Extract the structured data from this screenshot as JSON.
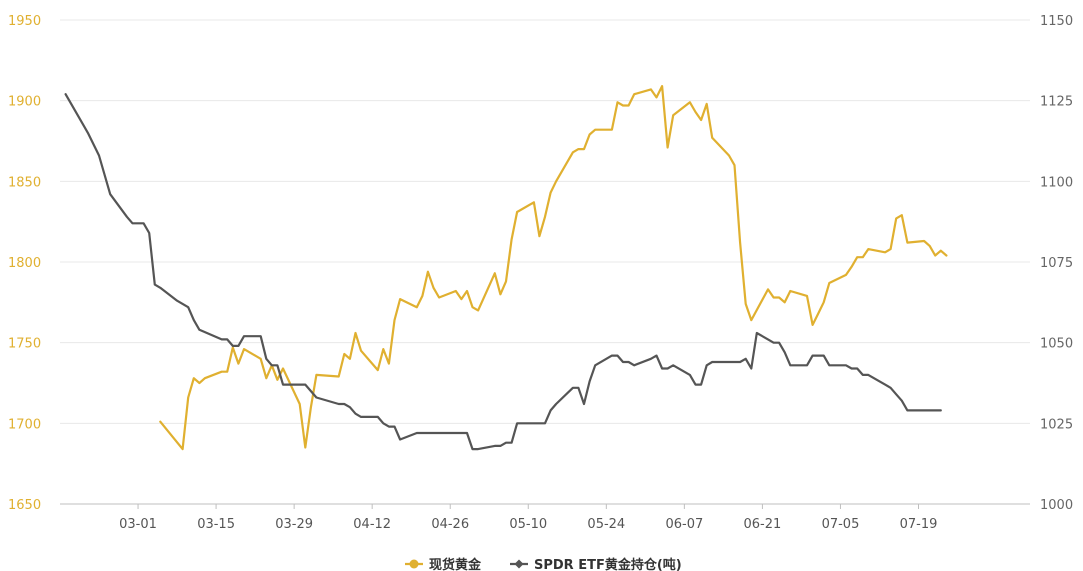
{
  "chart_data": {
    "type": "line",
    "title": "",
    "xlabel": "",
    "ylabel": "",
    "x_ticks": [
      "03-01",
      "03-15",
      "03-29",
      "04-12",
      "04-26",
      "05-10",
      "05-24",
      "06-07",
      "06-21",
      "07-05",
      "07-19"
    ],
    "y_left": {
      "ticks": [
        1650,
        1700,
        1750,
        1800,
        1850,
        1900,
        1950
      ],
      "range": [
        1650,
        1950
      ]
    },
    "y_right": {
      "ticks": [
        1000,
        1025,
        1050,
        1075,
        1100,
        1125,
        1150
      ],
      "range": [
        1000,
        1150
      ]
    },
    "x_range_days": [
      -14,
      160
    ],
    "grid": "horizontal",
    "legend_position": "bottom-center",
    "series": [
      {
        "name": "现货黄金",
        "axis": "left",
        "color": "#E0B030",
        "points": [
          [
            4,
            1701
          ],
          [
            8,
            1684
          ],
          [
            9,
            1716
          ],
          [
            10,
            1728
          ],
          [
            11,
            1725
          ],
          [
            12,
            1728
          ],
          [
            15,
            1732
          ],
          [
            16,
            1732
          ],
          [
            17,
            1747
          ],
          [
            18,
            1737
          ],
          [
            19,
            1746
          ],
          [
            22,
            1740
          ],
          [
            23,
            1728
          ],
          [
            24,
            1736
          ],
          [
            25,
            1727
          ],
          [
            26,
            1734
          ],
          [
            29,
            1712
          ],
          [
            30,
            1685
          ],
          [
            31,
            1710
          ],
          [
            32,
            1730
          ],
          [
            36,
            1729
          ],
          [
            37,
            1743
          ],
          [
            38,
            1740
          ],
          [
            39,
            1756
          ],
          [
            40,
            1745
          ],
          [
            43,
            1733
          ],
          [
            44,
            1746
          ],
          [
            45,
            1737
          ],
          [
            46,
            1764
          ],
          [
            47,
            1777
          ],
          [
            50,
            1772
          ],
          [
            51,
            1779
          ],
          [
            52,
            1794
          ],
          [
            53,
            1784
          ],
          [
            54,
            1778
          ],
          [
            57,
            1782
          ],
          [
            58,
            1777
          ],
          [
            59,
            1782
          ],
          [
            60,
            1772
          ],
          [
            61,
            1770
          ],
          [
            64,
            1793
          ],
          [
            65,
            1780
          ],
          [
            66,
            1788
          ],
          [
            67,
            1814
          ],
          [
            68,
            1831
          ],
          [
            71,
            1837
          ],
          [
            72,
            1816
          ],
          [
            73,
            1828
          ],
          [
            74,
            1843
          ],
          [
            75,
            1850
          ],
          [
            78,
            1868
          ],
          [
            79,
            1870
          ],
          [
            80,
            1870
          ],
          [
            81,
            1879
          ],
          [
            82,
            1882
          ],
          [
            85,
            1882
          ],
          [
            86,
            1899
          ],
          [
            87,
            1897
          ],
          [
            88,
            1897
          ],
          [
            89,
            1904
          ],
          [
            92,
            1907
          ],
          [
            93,
            1902
          ],
          [
            94,
            1909
          ],
          [
            95,
            1871
          ],
          [
            96,
            1891
          ],
          [
            99,
            1899
          ],
          [
            100,
            1893
          ],
          [
            101,
            1888
          ],
          [
            102,
            1898
          ],
          [
            103,
            1877
          ],
          [
            106,
            1866
          ],
          [
            107,
            1860
          ],
          [
            108,
            1812
          ],
          [
            109,
            1774
          ],
          [
            110,
            1764
          ],
          [
            113,
            1783
          ],
          [
            114,
            1778
          ],
          [
            115,
            1778
          ],
          [
            116,
            1775
          ],
          [
            117,
            1782
          ],
          [
            120,
            1779
          ],
          [
            121,
            1761
          ],
          [
            122,
            1768
          ],
          [
            123,
            1775
          ],
          [
            124,
            1787
          ],
          [
            127,
            1792
          ],
          [
            128,
            1797
          ],
          [
            129,
            1803
          ],
          [
            130,
            1803
          ],
          [
            131,
            1808
          ],
          [
            134,
            1806
          ],
          [
            135,
            1808
          ],
          [
            136,
            1827
          ],
          [
            137,
            1829
          ],
          [
            138,
            1812
          ],
          [
            141,
            1813
          ],
          [
            142,
            1810
          ],
          [
            143,
            1804
          ],
          [
            144,
            1807
          ],
          [
            145,
            1804
          ]
        ]
      },
      {
        "name": "SPDR ETF黄金持仓(吨)",
        "axis": "right",
        "color": "#555555",
        "points": [
          [
            -13,
            1127
          ],
          [
            -9,
            1115
          ],
          [
            -7,
            1108
          ],
          [
            -5,
            1096
          ],
          [
            -2,
            1089
          ],
          [
            -1,
            1087
          ],
          [
            0,
            1087
          ],
          [
            1,
            1087
          ],
          [
            2,
            1084
          ],
          [
            3,
            1068
          ],
          [
            4,
            1067
          ],
          [
            7,
            1063
          ],
          [
            9,
            1061
          ],
          [
            10,
            1057
          ],
          [
            11,
            1054
          ],
          [
            15,
            1051
          ],
          [
            16,
            1051
          ],
          [
            17,
            1049
          ],
          [
            18,
            1049
          ],
          [
            19,
            1052
          ],
          [
            22,
            1052
          ],
          [
            23,
            1045
          ],
          [
            24,
            1043
          ],
          [
            25,
            1043
          ],
          [
            26,
            1037
          ],
          [
            29,
            1037
          ],
          [
            30,
            1037
          ],
          [
            31,
            1035
          ],
          [
            32,
            1033
          ],
          [
            36,
            1031
          ],
          [
            37,
            1031
          ],
          [
            38,
            1030
          ],
          [
            39,
            1028
          ],
          [
            40,
            1027
          ],
          [
            43,
            1027
          ],
          [
            44,
            1025
          ],
          [
            45,
            1024
          ],
          [
            46,
            1024
          ],
          [
            47,
            1020
          ],
          [
            50,
            1022
          ],
          [
            51,
            1022
          ],
          [
            52,
            1022
          ],
          [
            53,
            1022
          ],
          [
            54,
            1022
          ],
          [
            57,
            1022
          ],
          [
            58,
            1022
          ],
          [
            59,
            1022
          ],
          [
            60,
            1017
          ],
          [
            61,
            1017
          ],
          [
            64,
            1018
          ],
          [
            65,
            1018
          ],
          [
            66,
            1019
          ],
          [
            67,
            1019
          ],
          [
            68,
            1025
          ],
          [
            71,
            1025
          ],
          [
            72,
            1025
          ],
          [
            73,
            1025
          ],
          [
            74,
            1029
          ],
          [
            75,
            1031
          ],
          [
            78,
            1036
          ],
          [
            79,
            1036
          ],
          [
            80,
            1031
          ],
          [
            81,
            1038
          ],
          [
            82,
            1043
          ],
          [
            85,
            1046
          ],
          [
            86,
            1046
          ],
          [
            87,
            1044
          ],
          [
            88,
            1044
          ],
          [
            89,
            1043
          ],
          [
            92,
            1045
          ],
          [
            93,
            1046
          ],
          [
            94,
            1042
          ],
          [
            95,
            1042
          ],
          [
            96,
            1043
          ],
          [
            99,
            1040
          ],
          [
            100,
            1037
          ],
          [
            101,
            1037
          ],
          [
            102,
            1043
          ],
          [
            103,
            1044
          ],
          [
            106,
            1044
          ],
          [
            107,
            1044
          ],
          [
            108,
            1044
          ],
          [
            109,
            1045
          ],
          [
            110,
            1042
          ],
          [
            111,
            1053
          ],
          [
            113,
            1051
          ],
          [
            114,
            1050
          ],
          [
            115,
            1050
          ],
          [
            116,
            1047
          ],
          [
            117,
            1043
          ],
          [
            120,
            1043
          ],
          [
            121,
            1046
          ],
          [
            122,
            1046
          ],
          [
            123,
            1046
          ],
          [
            124,
            1043
          ],
          [
            127,
            1043
          ],
          [
            128,
            1042
          ],
          [
            129,
            1042
          ],
          [
            130,
            1040
          ],
          [
            131,
            1040
          ],
          [
            134,
            1037
          ],
          [
            135,
            1036
          ],
          [
            136,
            1034
          ],
          [
            137,
            1032
          ],
          [
            138,
            1029
          ],
          [
            141,
            1029
          ],
          [
            142,
            1029
          ],
          [
            143,
            1029
          ],
          [
            144,
            1029
          ]
        ]
      }
    ]
  }
}
